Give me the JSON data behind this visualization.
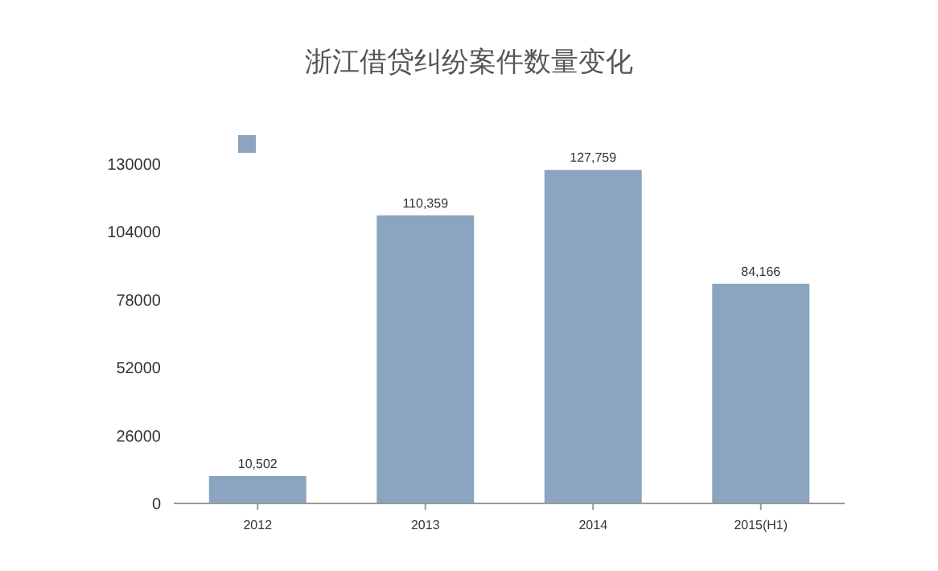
{
  "chart_data": {
    "type": "bar",
    "title": "浙江借贷纠纷案件数量变化",
    "categories": [
      "2012",
      "2013",
      "2014",
      "2015(H1)"
    ],
    "series": [
      {
        "color": "#8ba5c0",
        "values": [
          10502,
          110359,
          127759,
          84166
        ],
        "value_labels": [
          "10,502",
          "110,359",
          "127,759",
          "84,166"
        ]
      }
    ],
    "ylim": [
      0,
      130000
    ],
    "yticks": [
      0,
      26000,
      52000,
      78000,
      104000,
      130000
    ],
    "grid": false
  }
}
